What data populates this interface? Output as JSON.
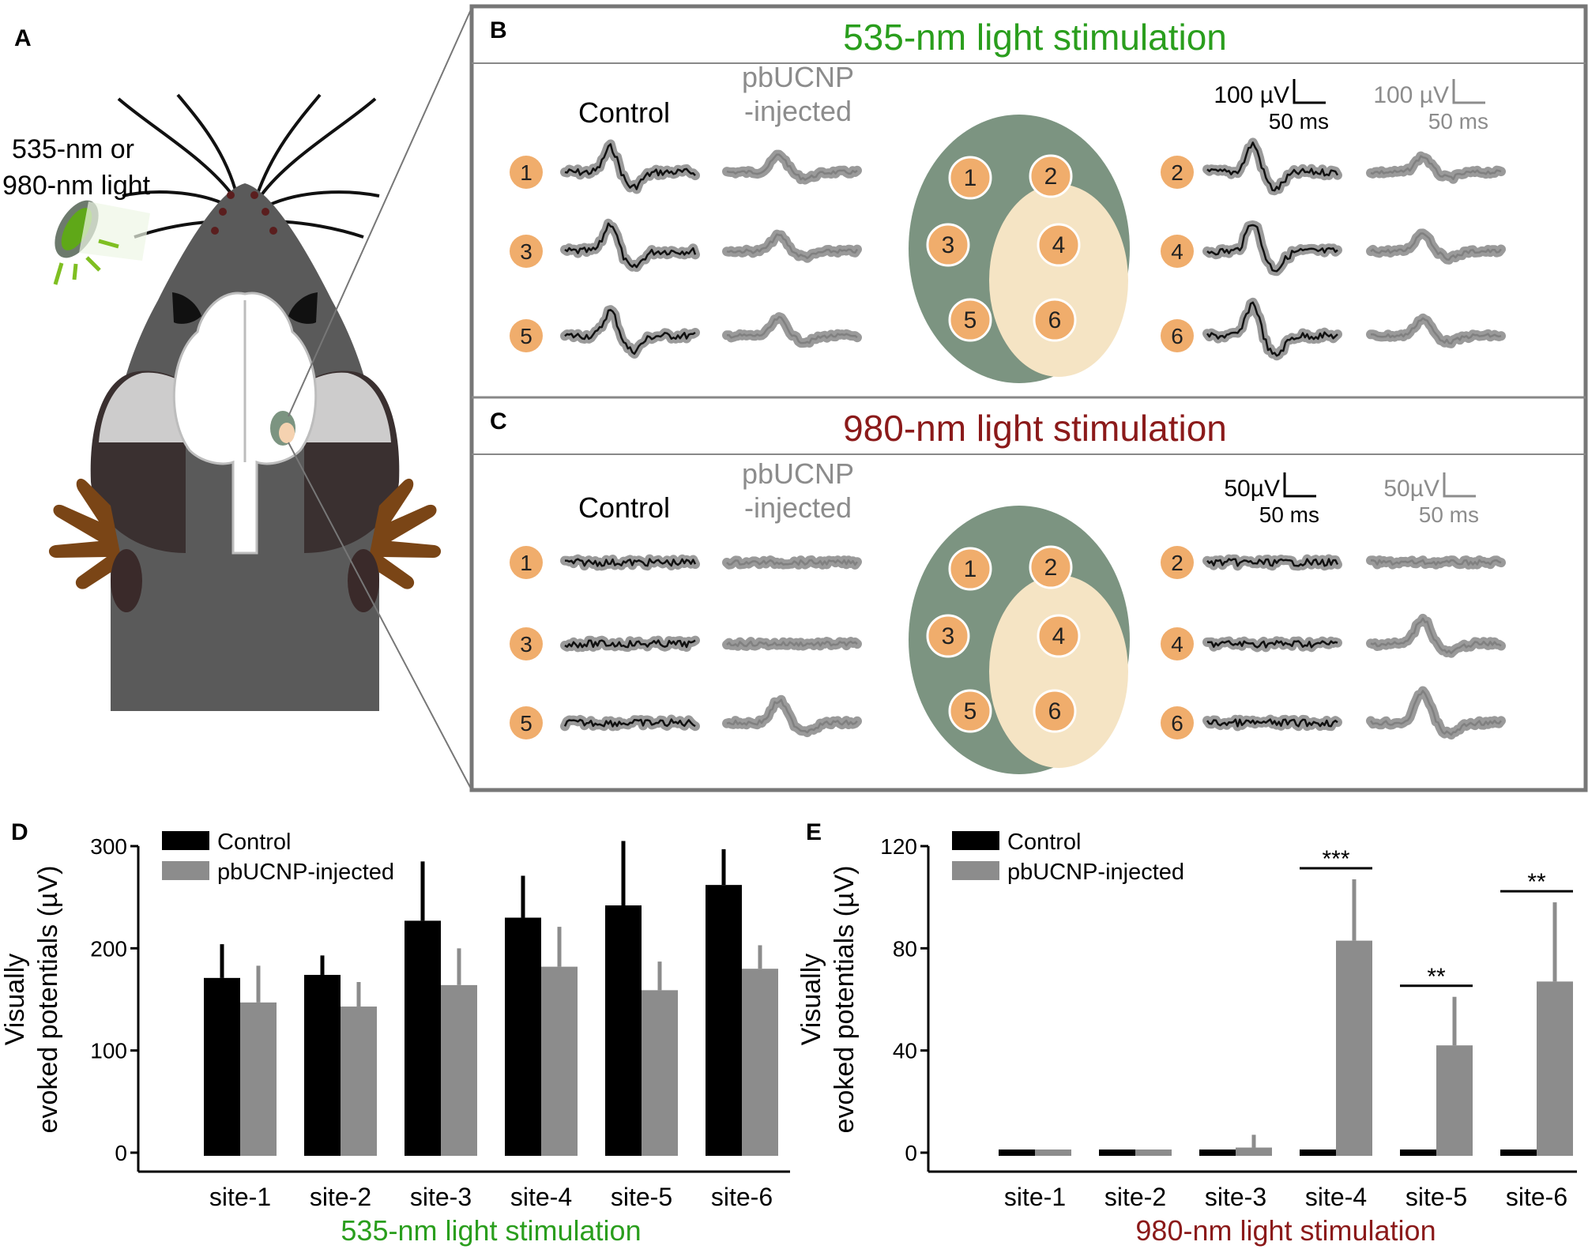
{
  "panels": {
    "a": "A",
    "b": "B",
    "c": "C",
    "d": "D",
    "e": "E"
  },
  "colors": {
    "green": "#2a9e1d",
    "darkred": "#8b1a1a",
    "gray": "#8c8c8c",
    "black": "#000000",
    "site_circle": "#f0ad6c",
    "ellipse": "#7c9481",
    "ellipse_light": "#f5e4c4",
    "mouse_dark": "#555555",
    "mouse_light": "#c6c6c6",
    "paw": "#7a4516"
  },
  "panel_a": {
    "light_label_1": "535-nm or",
    "light_label_2": "980-nm light"
  },
  "panel_b": {
    "title": "535-nm light stimulation",
    "control_label": "Control",
    "pb_label_1": "pbUCNP",
    "pb_label_2": "-injected",
    "scale_black_v": "100 µV",
    "scale_black_t": "50 ms",
    "scale_gray_v": "100 µV",
    "scale_gray_t": "50 ms",
    "sites_left": [
      "1",
      "3",
      "5"
    ],
    "sites_right": [
      "2",
      "4",
      "6"
    ],
    "map_sites": [
      "1",
      "2",
      "3",
      "4",
      "5",
      "6"
    ]
  },
  "panel_c": {
    "title": "980-nm light stimulation",
    "control_label": "Control",
    "pb_label_1": "pbUCNP",
    "pb_label_2": "-injected",
    "scale_black_v": "50µV",
    "scale_black_t": "50 ms",
    "scale_gray_v": "50µV",
    "scale_gray_t": "50 ms",
    "sites_left": [
      "1",
      "3",
      "5"
    ],
    "sites_right": [
      "2",
      "4",
      "6"
    ],
    "map_sites": [
      "1",
      "2",
      "3",
      "4",
      "5",
      "6"
    ]
  },
  "chart_data": [
    {
      "panel": "D",
      "type": "bar",
      "categories": [
        "site-1",
        "site-2",
        "site-3",
        "site-4",
        "site-5",
        "site-6"
      ],
      "series": [
        {
          "name": "Control",
          "values": [
            171,
            174,
            227,
            230,
            242,
            262
          ],
          "errors": [
            33,
            19,
            58,
            41,
            63,
            35
          ]
        },
        {
          "name": "pbUCNP-injected",
          "values": [
            147,
            143,
            164,
            182,
            159,
            180
          ],
          "errors": [
            36,
            24,
            36,
            39,
            28,
            23
          ]
        }
      ],
      "xlabel": "535-nm light stimulation",
      "ylabel_1": "Visually",
      "ylabel_2": "evoked potentials (µV)",
      "ylim": [
        0,
        300
      ],
      "yticks": [
        "0",
        "100",
        "200",
        "300"
      ],
      "legend": "top-left",
      "significance": []
    },
    {
      "panel": "E",
      "type": "bar",
      "categories": [
        "site-1",
        "site-2",
        "site-3",
        "site-4",
        "site-5",
        "site-6"
      ],
      "series": [
        {
          "name": "Control",
          "values": [
            0,
            0,
            0,
            0,
            0,
            0
          ],
          "errors": [
            0,
            0,
            0,
            0,
            0,
            0
          ]
        },
        {
          "name": "pbUCNP-injected",
          "values": [
            0,
            0,
            2,
            83,
            42,
            67
          ],
          "errors": [
            0,
            0,
            5,
            24,
            19,
            31
          ]
        }
      ],
      "xlabel": "980-nm light stimulation",
      "ylabel_1": "Visually",
      "ylabel_2": "evoked potentials (µV)",
      "ylim": [
        0,
        120
      ],
      "yticks": [
        "0",
        "40",
        "80",
        "120"
      ],
      "legend": "top-left",
      "significance": [
        {
          "site": "site-4",
          "label": "***"
        },
        {
          "site": "site-5",
          "label": "**"
        },
        {
          "site": "site-6",
          "label": "**"
        }
      ]
    }
  ]
}
